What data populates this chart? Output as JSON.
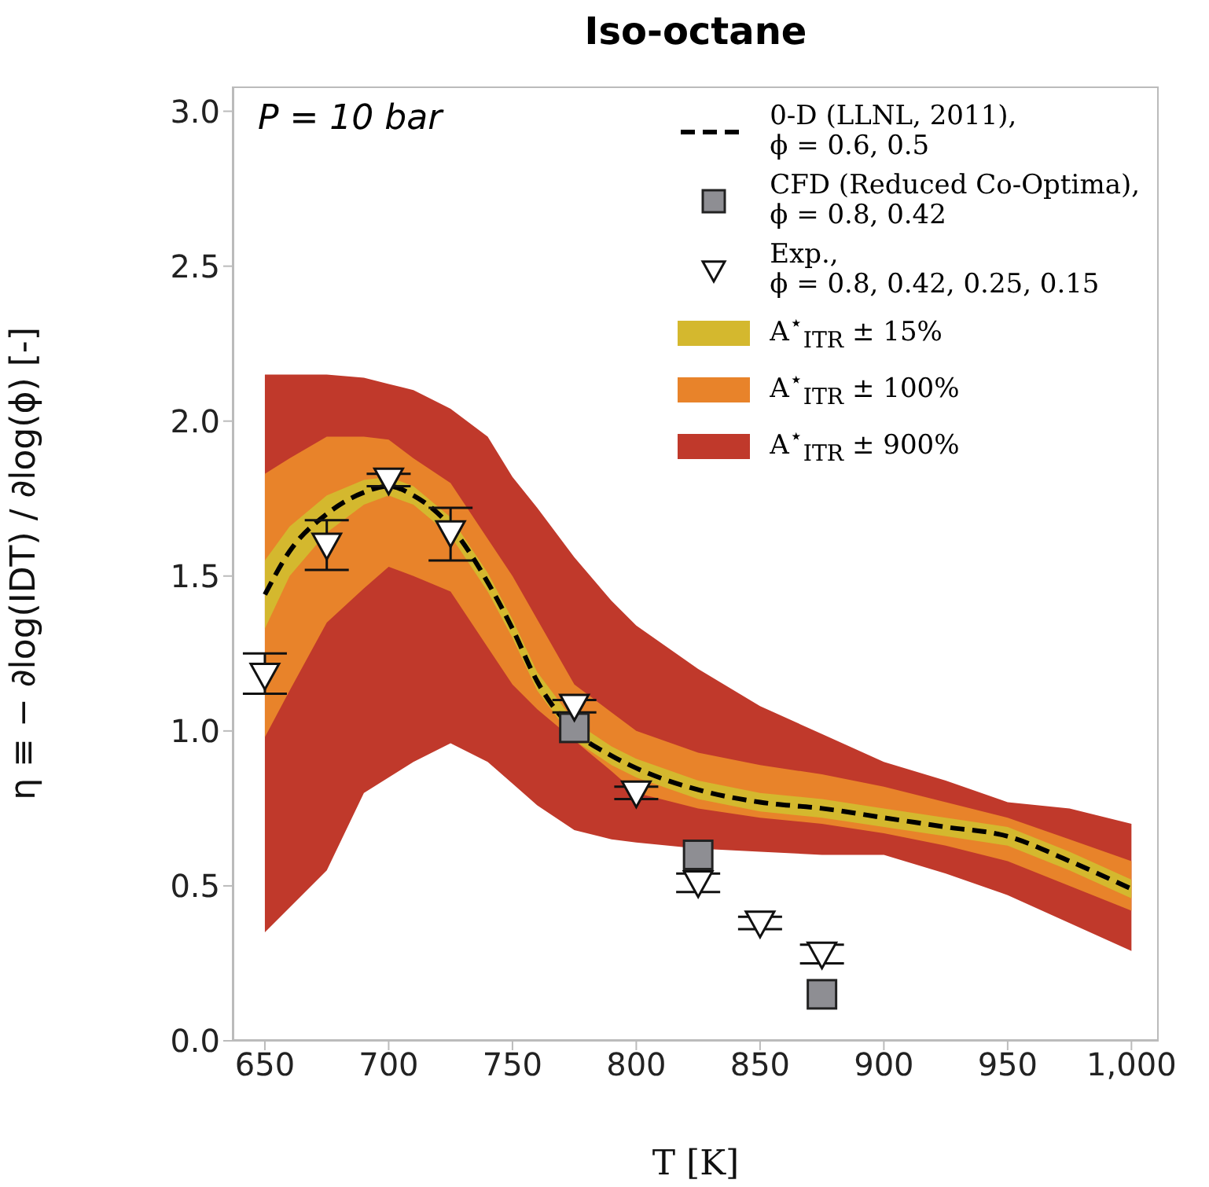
{
  "chart_data": {
    "type": "line",
    "title": "Iso-octane",
    "xlabel": "T [K]",
    "ylabel": "η ≡ − ∂log(IDT) / ∂log(ϕ)  [-]",
    "annotations": [
      "P = 10 bar"
    ],
    "xlim": [
      637,
      1011
    ],
    "xticks": [
      650,
      700,
      750,
      800,
      850,
      900,
      950,
      {
        "value": 1000,
        "label": "1,000"
      }
    ],
    "ylim": [
      0,
      3.08
    ],
    "yticks": [
      {
        "value": 0,
        "label": "0.0"
      },
      {
        "value": 0.5,
        "label": "0.5"
      },
      {
        "value": 1,
        "label": "1.0"
      },
      {
        "value": 1.5,
        "label": "1.5"
      },
      {
        "value": 2,
        "label": "2.0"
      },
      {
        "value": 2.5,
        "label": "2.5"
      },
      {
        "value": 3,
        "label": "3.0"
      }
    ],
    "legend": "top right",
    "grid": false,
    "series": [
      {
        "name": "0-D (LLNL, 2011),\nϕ =  0.6, 0.5",
        "color": "#000000",
        "line_style": "dashed",
        "marker": "none",
        "x": [
          650,
          660,
          675,
          690,
          700,
          710,
          725,
          740,
          750,
          760,
          775,
          790,
          800,
          825,
          850,
          875,
          900,
          925,
          950,
          975,
          1000
        ],
        "values": [
          1.44,
          1.58,
          1.7,
          1.77,
          1.79,
          1.76,
          1.66,
          1.48,
          1.33,
          1.16,
          1.0,
          0.92,
          0.88,
          0.81,
          0.77,
          0.75,
          0.72,
          0.69,
          0.66,
          0.58,
          0.49
        ]
      },
      {
        "type": "scatter",
        "name": "CFD (Reduced Co-Optima),\nϕ =  0.8, 0.42",
        "color": "#8e8e93",
        "marker": "square",
        "x": [
          775,
          825,
          875
        ],
        "values": [
          1.01,
          0.6,
          0.15
        ]
      },
      {
        "type": "scatter",
        "name": "Exp.,\nϕ =  0.8, 0.42, 0.25, 0.15",
        "color": "#ffffff",
        "marker": "triangle",
        "x": [
          650,
          675,
          700,
          725,
          775,
          800,
          825,
          850,
          875
        ],
        "values": [
          1.18,
          1.6,
          1.81,
          1.64,
          1.08,
          0.8,
          0.51,
          0.38,
          0.28
        ],
        "errors": [
          [
            1.12,
            1.25
          ],
          [
            1.52,
            1.68
          ],
          [
            1.79,
            1.83
          ],
          [
            1.55,
            1.72
          ],
          [
            1.06,
            1.1
          ],
          [
            0.78,
            0.82
          ],
          [
            0.48,
            0.54
          ],
          [
            0.36,
            0.4
          ],
          [
            0.25,
            0.31
          ]
        ]
      },
      {
        "name": "A$^{⋆}$$_{ITR}$ ± 15%",
        "color": "#d4b82e",
        "marker": "none",
        "x": [
          650,
          660,
          675,
          690,
          700,
          710,
          725,
          740,
          750,
          760,
          775,
          790,
          800,
          825,
          850,
          875,
          900,
          925,
          950,
          975,
          1000
        ],
        "values": [
          null,
          null,
          null,
          null,
          null,
          null,
          null,
          null,
          null,
          null,
          null,
          null,
          null,
          null,
          null,
          null,
          null,
          null,
          null,
          null,
          null
        ],
        "lower": [
          1.33,
          1.5,
          1.64,
          1.73,
          1.76,
          1.73,
          1.63,
          1.45,
          1.3,
          1.13,
          0.97,
          0.89,
          0.85,
          0.78,
          0.74,
          0.72,
          0.69,
          0.66,
          0.63,
          0.55,
          0.46
        ],
        "upper": [
          1.55,
          1.66,
          1.76,
          1.81,
          1.82,
          1.79,
          1.69,
          1.51,
          1.36,
          1.19,
          1.03,
          0.95,
          0.91,
          0.84,
          0.8,
          0.78,
          0.75,
          0.72,
          0.69,
          0.61,
          0.52
        ]
      },
      {
        "name": "A$^{⋆}$$_{ITR}$ ± 100%",
        "color": "#e8832a",
        "marker": "none",
        "x": [
          650,
          660,
          675,
          690,
          700,
          710,
          725,
          740,
          750,
          760,
          775,
          790,
          800,
          825,
          850,
          875,
          900,
          925,
          950,
          975,
          1000
        ],
        "values": [
          null,
          null,
          null,
          null,
          null,
          null,
          null,
          null,
          null,
          null,
          null,
          null,
          null,
          null,
          null,
          null,
          null,
          null,
          null,
          null,
          null
        ],
        "lower": [
          0.98,
          1.13,
          1.35,
          1.46,
          1.53,
          1.5,
          1.45,
          1.27,
          1.15,
          1.07,
          0.97,
          0.87,
          0.8,
          0.75,
          0.72,
          0.7,
          0.67,
          0.63,
          0.58,
          0.5,
          0.42
        ],
        "upper": [
          1.83,
          1.88,
          1.95,
          1.95,
          1.94,
          1.88,
          1.8,
          1.62,
          1.5,
          1.36,
          1.15,
          1.06,
          1.0,
          0.93,
          0.89,
          0.86,
          0.82,
          0.77,
          0.72,
          0.65,
          0.58
        ]
      },
      {
        "name": "A$^{⋆}$$_{ITR}$ ± 900%",
        "color": "#c0392b",
        "marker": "none",
        "x": [
          650,
          660,
          675,
          690,
          700,
          710,
          725,
          740,
          750,
          760,
          775,
          790,
          800,
          825,
          850,
          875,
          900,
          925,
          950,
          975,
          1000
        ],
        "values": [
          null,
          null,
          null,
          null,
          null,
          null,
          null,
          null,
          null,
          null,
          null,
          null,
          null,
          null,
          null,
          null,
          null,
          null,
          null,
          null,
          null
        ],
        "lower": [
          0.35,
          0.43,
          0.55,
          0.8,
          0.85,
          0.9,
          0.96,
          0.9,
          0.83,
          0.76,
          0.68,
          0.65,
          0.64,
          0.62,
          0.61,
          0.6,
          0.6,
          0.54,
          0.47,
          0.38,
          0.29
        ],
        "upper": [
          2.15,
          2.15,
          2.15,
          2.14,
          2.12,
          2.1,
          2.04,
          1.95,
          1.82,
          1.72,
          1.56,
          1.42,
          1.34,
          1.2,
          1.08,
          0.99,
          0.9,
          0.84,
          0.77,
          0.75,
          0.7
        ]
      }
    ]
  }
}
